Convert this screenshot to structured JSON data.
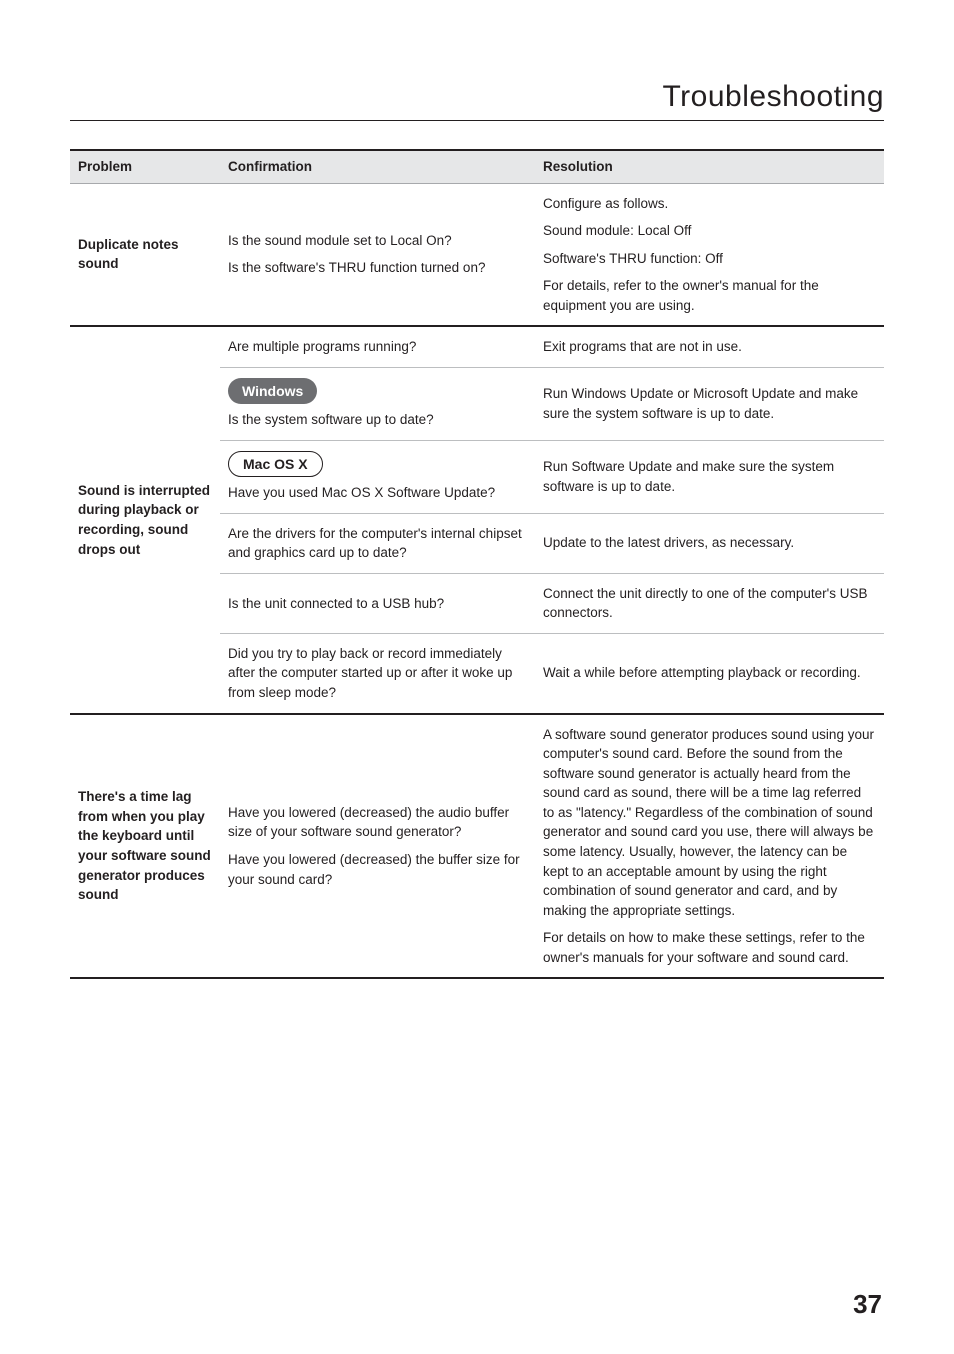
{
  "section_title": "Troubleshooting",
  "page_number": "37",
  "table": {
    "headers": {
      "problem": "Problem",
      "confirmation": "Confirmation",
      "resolution": "Resolution"
    },
    "groups": [
      {
        "problem": "Duplicate notes sound",
        "rows": [
          {
            "confirmation": "Is the sound module set to Local On?\nIs the software's THRU function turned on?",
            "resolution": "Configure as follows.\nSound module: Local Off\nSoftware's THRU function: Off\nFor details, refer to the owner's manual for the equipment you are using."
          }
        ]
      },
      {
        "problem": "Sound is interrupted during playback or recording, sound drops out",
        "rows": [
          {
            "confirmation": "Are multiple programs running?",
            "resolution": "Exit programs that are not in use."
          },
          {
            "badge": "Windows",
            "badge_style": "dark",
            "confirmation": "Is the system software up to date?",
            "resolution": "Run Windows Update or Microsoft Update and make sure the system software is up to date."
          },
          {
            "badge": "Mac OS X",
            "badge_style": "outline",
            "confirmation": "Have you used Mac OS X Software Update?",
            "resolution": "Run Software Update and make sure the system software is up to date."
          },
          {
            "confirmation": "Are the drivers for the computer's internal chipset and graphics card up to date?",
            "resolution": "Update to the latest drivers, as necessary."
          },
          {
            "confirmation": "Is the unit connected to a USB hub?",
            "resolution": "Connect the unit directly to one of the computer's USB connectors."
          },
          {
            "confirmation": "Did you try to play back or record immediately after the computer started up or after it woke up from sleep mode?",
            "resolution": "Wait a while before attempting playback or recording."
          }
        ]
      },
      {
        "problem": "There's a time lag from when you play the keyboard until your software sound generator produces sound",
        "rows": [
          {
            "confirmation": "Have you lowered (decreased) the audio buffer size of your software sound generator?\nHave you lowered (decreased) the buffer size for your sound card?",
            "resolution": "A software sound generator produces sound using your computer's sound card. Before the sound from the software sound generator is actually heard from the sound card as sound, there will be a time lag referred to as \"latency.\" Regardless of the combination of sound generator and sound card you use, there will always be some latency. Usually, however, the latency can be kept to an acceptable amount by using the right combination of sound generator and card, and by making the appropriate settings.\nFor details on how to make these settings, refer to the owner's manuals for your software and sound card."
          }
        ]
      }
    ]
  }
}
